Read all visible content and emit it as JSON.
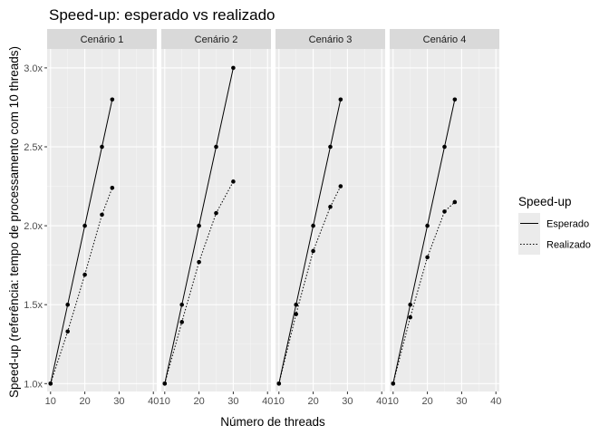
{
  "chart_data": {
    "type": "line",
    "title": "Speed-up: esperado vs realizado",
    "xlabel": "Número de threads",
    "ylabel": "Speed-up (referência: tempo de processamento com 10 threads)",
    "xlim": [
      9,
      41
    ],
    "ylim": [
      0.95,
      3.12
    ],
    "x_ticks": [
      10,
      20,
      30,
      40
    ],
    "x_tick_labels": [
      "10",
      "20",
      "30",
      "40"
    ],
    "y_ticks": [
      1.0,
      1.5,
      2.0,
      2.5,
      3.0
    ],
    "y_tick_labels": [
      "1.0x",
      "1.5x",
      "2.0x",
      "2.5x",
      "3.0x"
    ],
    "grid": true,
    "legend": {
      "title": "Speed-up",
      "position": "right",
      "entries": [
        {
          "label": "Esperado",
          "linetype": "solid"
        },
        {
          "label": "Realizado",
          "linetype": "dotted"
        }
      ]
    },
    "facets": [
      {
        "label": "Cenário 1",
        "series": [
          {
            "name": "Esperado",
            "x": [
              10,
              15,
              20,
              25,
              28
            ],
            "y": [
              1.0,
              1.5,
              2.0,
              2.5,
              2.8
            ]
          },
          {
            "name": "Realizado",
            "x": [
              10,
              15,
              20,
              25,
              28
            ],
            "y": [
              1.0,
              1.33,
              1.69,
              2.07,
              2.24
            ]
          }
        ]
      },
      {
        "label": "Cenário 2",
        "series": [
          {
            "name": "Esperado",
            "x": [
              10,
              15,
              20,
              25,
              30
            ],
            "y": [
              1.0,
              1.5,
              2.0,
              2.5,
              3.0
            ]
          },
          {
            "name": "Realizado",
            "x": [
              10,
              15,
              20,
              25,
              30
            ],
            "y": [
              1.0,
              1.39,
              1.77,
              2.08,
              2.28
            ]
          }
        ]
      },
      {
        "label": "Cenário 3",
        "series": [
          {
            "name": "Esperado",
            "x": [
              10,
              15,
              20,
              25,
              28
            ],
            "y": [
              1.0,
              1.5,
              2.0,
              2.5,
              2.8
            ]
          },
          {
            "name": "Realizado",
            "x": [
              10,
              15,
              20,
              25,
              28
            ],
            "y": [
              1.0,
              1.44,
              1.84,
              2.12,
              2.25
            ]
          }
        ]
      },
      {
        "label": "Cenário 4",
        "series": [
          {
            "name": "Esperado",
            "x": [
              10,
              15,
              20,
              25,
              28
            ],
            "y": [
              1.0,
              1.5,
              2.0,
              2.5,
              2.8
            ]
          },
          {
            "name": "Realizado",
            "x": [
              10,
              15,
              20,
              25,
              28
            ],
            "y": [
              1.0,
              1.42,
              1.8,
              2.09,
              2.15
            ]
          }
        ]
      }
    ]
  },
  "colors": {
    "panel_background": "#ebebeb",
    "strip_background": "#d9d9d9",
    "grid_major": "#ffffff",
    "grid_minor": "#f5f5f5",
    "line": "#000000",
    "tick_text": "#4d4d4d"
  }
}
